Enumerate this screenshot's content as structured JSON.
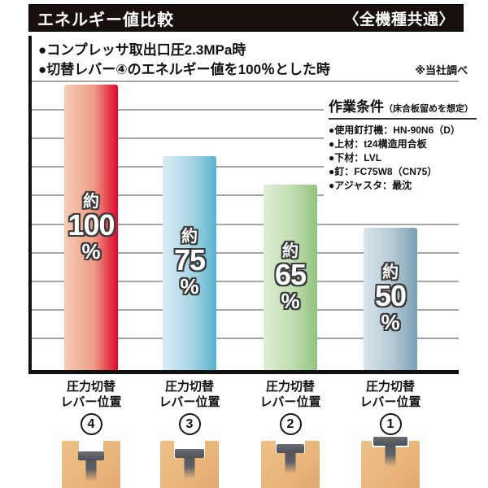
{
  "header": {
    "title": "エネルギー値比較",
    "badge": "〈全機種共通〉"
  },
  "notes": {
    "line1": "●コンプレッサ取出口圧2.3MPa時",
    "line2": "●切替レバー④のエネルギー値を100％とした時",
    "disclaimer": "※当社調べ"
  },
  "conditions": {
    "title": "作業条件",
    "subtitle": "（床合板留めを想定）",
    "items": [
      "●使用釘打機：HN-90N6（D）",
      "●上材：t24構造用合板",
      "●下材：LVL",
      "●釘：FC75W8（CN75）",
      "●アジャスタ：最沈"
    ]
  },
  "chart_data": {
    "type": "bar",
    "title": "エネルギー値比較",
    "categories": [
      "圧力切替レバー位置 ④",
      "圧力切替レバー位置 ③",
      "圧力切替レバー位置 ②",
      "圧力切替レバー位置 ①"
    ],
    "values": [
      100,
      75,
      65,
      50
    ],
    "value_labels": [
      "約100%",
      "約75%",
      "約65%",
      "約50%"
    ],
    "ylim": [
      0,
      100
    ],
    "grid_interval": 10,
    "grid": "horizontal-gray-lines",
    "legend": "none",
    "bar_gradients": [
      [
        "#f6ccb6",
        "#ee9d85",
        "#e1062c"
      ],
      [
        "#d8ecf4",
        "#a6d5e4",
        "#58b1ce"
      ],
      [
        "#dfeed6",
        "#c0ddb0",
        "#92c383"
      ],
      [
        "#dae5eb",
        "#b3c8d3",
        "#7aa0b3"
      ]
    ],
    "xlabel": "",
    "ylabel": ""
  },
  "bars": [
    {
      "prefix": "約",
      "value": "100",
      "suffix": "%",
      "cat_line1": "圧力切替",
      "cat_line2": "レバー位置",
      "lever_number": "4"
    },
    {
      "prefix": "約",
      "value": "75",
      "suffix": "%",
      "cat_line1": "圧力切替",
      "cat_line2": "レバー位置",
      "lever_number": "3"
    },
    {
      "prefix": "約",
      "value": "65",
      "suffix": "%",
      "cat_line1": "圧力切替",
      "cat_line2": "レバー位置",
      "lever_number": "2"
    },
    {
      "prefix": "約",
      "value": "50",
      "suffix": "%",
      "cat_line1": "圧力切替",
      "cat_line2": "レバー位置",
      "lever_number": "1"
    }
  ]
}
